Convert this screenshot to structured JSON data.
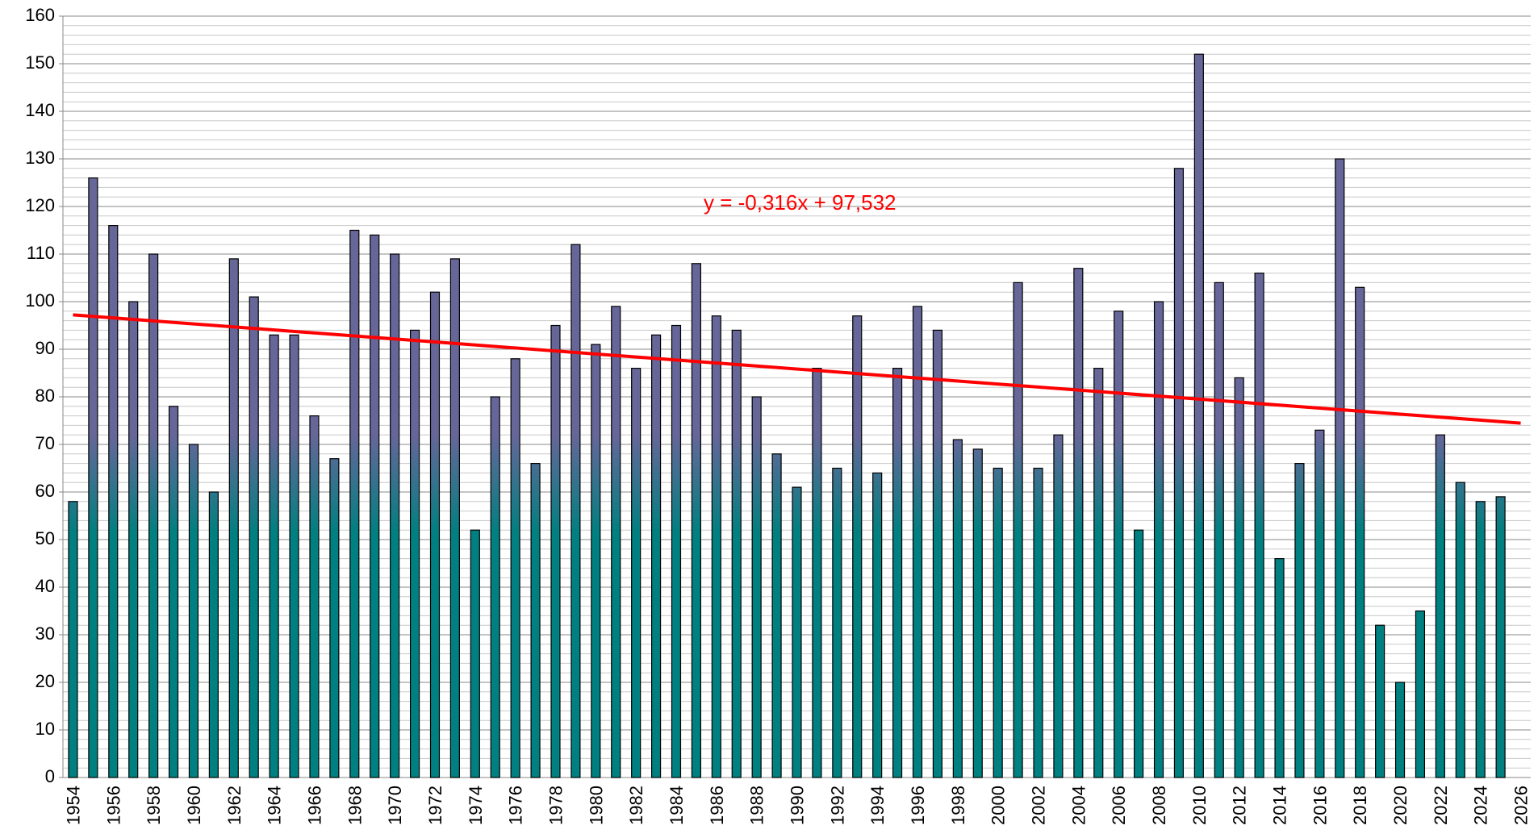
{
  "chart_data": {
    "type": "bar",
    "categories": [
      "1954",
      null,
      "1956",
      null,
      "1958",
      null,
      "1960",
      null,
      "1962",
      null,
      "1964",
      null,
      "1966",
      null,
      "1968",
      null,
      "1970",
      null,
      "1972",
      null,
      "1974",
      null,
      "1976",
      null,
      "1978",
      null,
      "1980",
      null,
      "1982",
      null,
      "1984",
      null,
      "1986",
      null,
      "1988",
      null,
      "1990",
      null,
      "1992",
      null,
      "1994",
      null,
      "1996",
      null,
      "1998",
      null,
      "2000",
      null,
      "2002",
      null,
      "2004",
      null,
      "2006",
      null,
      "2008",
      null,
      "2010",
      null,
      "2012",
      null,
      "2014",
      null,
      "2016",
      null,
      "2018",
      null,
      "2020",
      null,
      "2022",
      null,
      "2024",
      null,
      "2026"
    ],
    "values": [
      58,
      126,
      116,
      100,
      110,
      78,
      70,
      60,
      109,
      101,
      93,
      93,
      76,
      67,
      115,
      114,
      110,
      94,
      102,
      109,
      52,
      80,
      88,
      66,
      95,
      112,
      91,
      99,
      86,
      93,
      95,
      108,
      97,
      94,
      80,
      68,
      61,
      86,
      65,
      97,
      64,
      86,
      99,
      94,
      71,
      69,
      65,
      104,
      65,
      72,
      107,
      86,
      98,
      52,
      100,
      128,
      152,
      104,
      84,
      106,
      46,
      66,
      73,
      130,
      103,
      32,
      20,
      35,
      72,
      62,
      58,
      59,
      null
    ],
    "color": "#666699",
    "color_bottom": "#008080",
    "ylim": [
      0,
      160
    ],
    "yticks": [
      0,
      10,
      20,
      30,
      40,
      50,
      60,
      70,
      80,
      90,
      100,
      110,
      120,
      130,
      140,
      150,
      160
    ],
    "grid": true,
    "trendline": {
      "slope": -0.316,
      "intercept": 97.532,
      "label": "y = -0,316x + 97,532",
      "color": "#ff0000"
    }
  }
}
